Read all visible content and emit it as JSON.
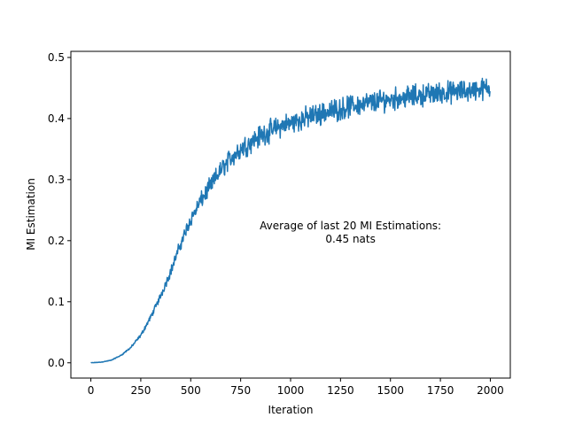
{
  "chart_data": {
    "type": "line",
    "title": "",
    "xlabel": "Iteration",
    "ylabel": "MI Estimation",
    "xlim": [
      -100,
      2100
    ],
    "ylim": [
      -0.025,
      0.51
    ],
    "xticks": [
      0,
      250,
      500,
      750,
      1000,
      1250,
      1500,
      1750,
      2000
    ],
    "xtick_labels": [
      "0",
      "250",
      "500",
      "750",
      "1000",
      "1250",
      "1500",
      "1750",
      "2000"
    ],
    "yticks": [
      0.0,
      0.1,
      0.2,
      0.3,
      0.4,
      0.5
    ],
    "ytick_labels": [
      "0.0",
      "0.1",
      "0.2",
      "0.3",
      "0.4",
      "0.5"
    ],
    "grid": false,
    "color": "#1f77b4",
    "annotation": {
      "lines": [
        "Average of last 20 MI Estimations:",
        "0.45 nats"
      ],
      "x": 1300,
      "y": 0.2
    },
    "series": [
      {
        "x": [
          0,
          50,
          100,
          150,
          200,
          250,
          300,
          350,
          400,
          450,
          500,
          550,
          600,
          650,
          700,
          750,
          800,
          850,
          900,
          950,
          1000,
          1050,
          1100,
          1150,
          1200,
          1250,
          1300,
          1350,
          1400,
          1450,
          1500,
          1550,
          1600,
          1650,
          1700,
          1750,
          1800,
          1850,
          1900,
          1950,
          2000
        ],
        "y": [
          0.0,
          0.001,
          0.004,
          0.012,
          0.025,
          0.045,
          0.075,
          0.11,
          0.15,
          0.195,
          0.235,
          0.265,
          0.29,
          0.315,
          0.335,
          0.35,
          0.362,
          0.372,
          0.38,
          0.387,
          0.393,
          0.398,
          0.403,
          0.408,
          0.412,
          0.416,
          0.42,
          0.423,
          0.426,
          0.429,
          0.432,
          0.434,
          0.436,
          0.438,
          0.44,
          0.442,
          0.443,
          0.444,
          0.446,
          0.448,
          0.45
        ]
      }
    ]
  }
}
